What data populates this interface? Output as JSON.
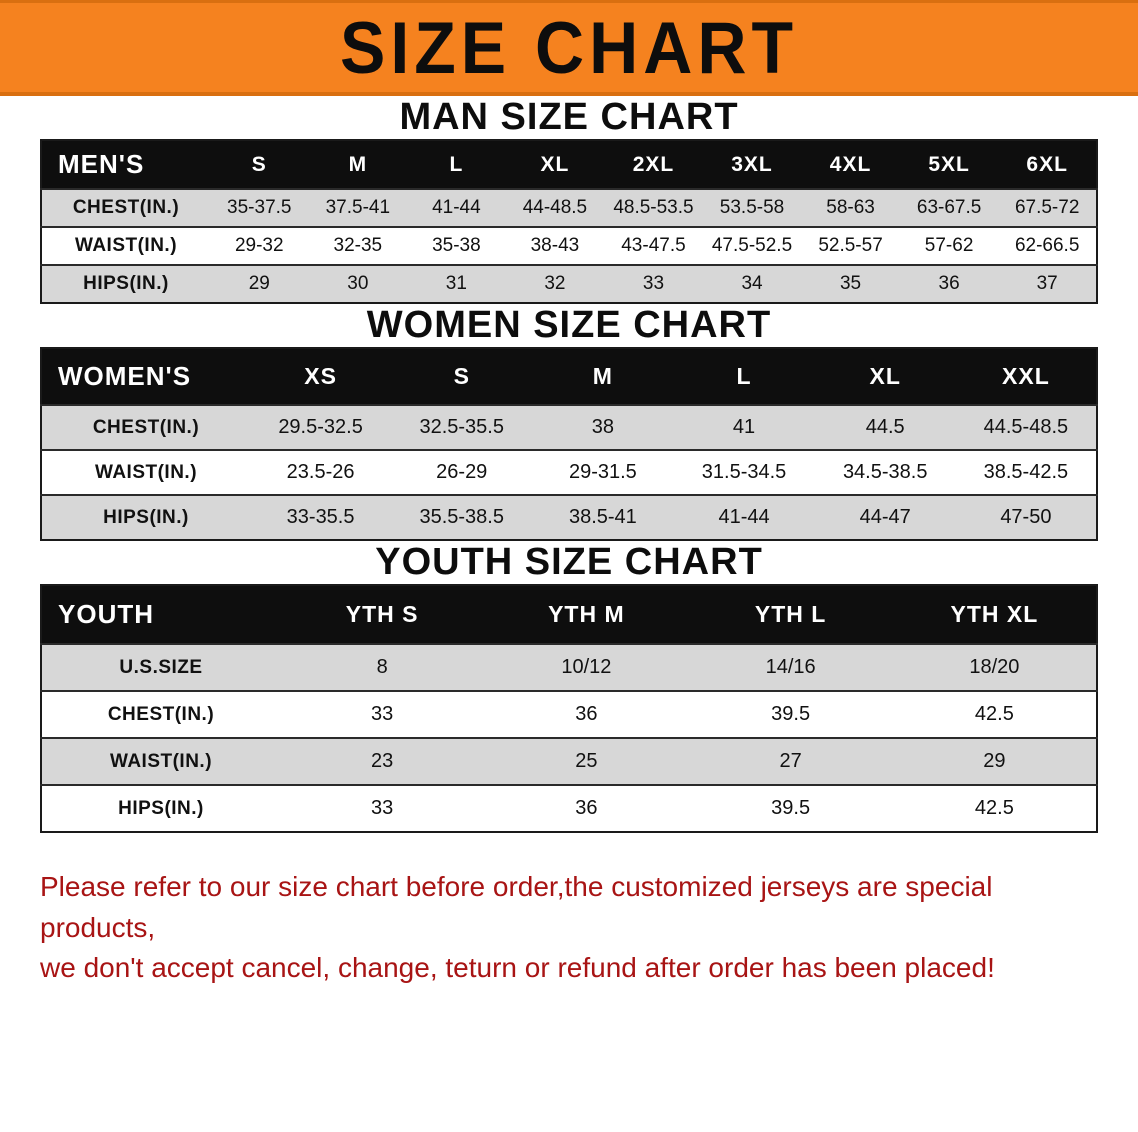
{
  "banner": {
    "title": "SIZE CHART",
    "bg_color": "#f5821f",
    "text_color": "#0d0d0d"
  },
  "sections": [
    {
      "heading": "MAN SIZE CHART",
      "table": {
        "header": [
          "MEN'S",
          "S",
          "M",
          "L",
          "XL",
          "2XL",
          "3XL",
          "4XL",
          "5XL",
          "6XL"
        ],
        "rows": [
          [
            "CHEST(IN.)",
            "35-37.5",
            "37.5-41",
            "41-44",
            "44-48.5",
            "48.5-53.5",
            "53.5-58",
            "58-63",
            "63-67.5",
            "67.5-72"
          ],
          [
            "WAIST(IN.)",
            "29-32",
            "32-35",
            "35-38",
            "38-43",
            "43-47.5",
            "47.5-52.5",
            "52.5-57",
            "57-62",
            "62-66.5"
          ],
          [
            "HIPS(IN.)",
            "29",
            "30",
            "31",
            "32",
            "33",
            "34",
            "35",
            "36",
            "37"
          ]
        ]
      }
    },
    {
      "heading": "WOMEN SIZE CHART",
      "table": {
        "header": [
          "WOMEN'S",
          "XS",
          "S",
          "M",
          "L",
          "XL",
          "XXL"
        ],
        "rows": [
          [
            "CHEST(IN.)",
            "29.5-32.5",
            "32.5-35.5",
            "38",
            "41",
            "44.5",
            "44.5-48.5"
          ],
          [
            "WAIST(IN.)",
            "23.5-26",
            "26-29",
            "29-31.5",
            "31.5-34.5",
            "34.5-38.5",
            "38.5-42.5"
          ],
          [
            "HIPS(IN.)",
            "33-35.5",
            "35.5-38.5",
            "38.5-41",
            "41-44",
            "44-47",
            "47-50"
          ]
        ]
      }
    },
    {
      "heading": "YOUTH SIZE CHART",
      "table": {
        "header": [
          "YOUTH",
          "YTH S",
          "YTH M",
          "YTH L",
          "YTH XL"
        ],
        "rows": [
          [
            "U.S.SIZE",
            "8",
            "10/12",
            "14/16",
            "18/20"
          ],
          [
            "CHEST(IN.)",
            "33",
            "36",
            "39.5",
            "42.5"
          ],
          [
            "WAIST(IN.)",
            "23",
            "25",
            "27",
            "29"
          ],
          [
            "HIPS(IN.)",
            "33",
            "36",
            "39.5",
            "42.5"
          ]
        ]
      }
    }
  ],
  "notice": {
    "line1": "Please refer to our size chart before order,the customized jerseys are special products,",
    "line2": "we don't accept cancel, change, teturn or refund after order has been placed!",
    "text_color": "#a81414"
  }
}
